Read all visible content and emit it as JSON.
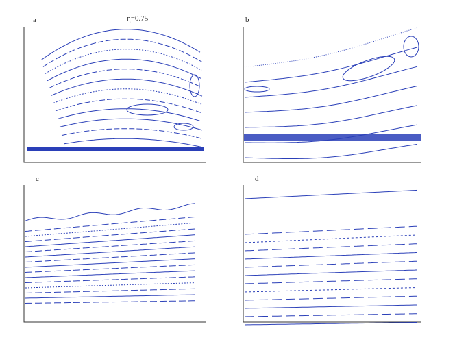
{
  "figure": {
    "parameter": "η=0.75",
    "panels": [
      {
        "label": "a"
      },
      {
        "label": "b"
      },
      {
        "label": "c"
      },
      {
        "label": "d"
      }
    ]
  }
}
